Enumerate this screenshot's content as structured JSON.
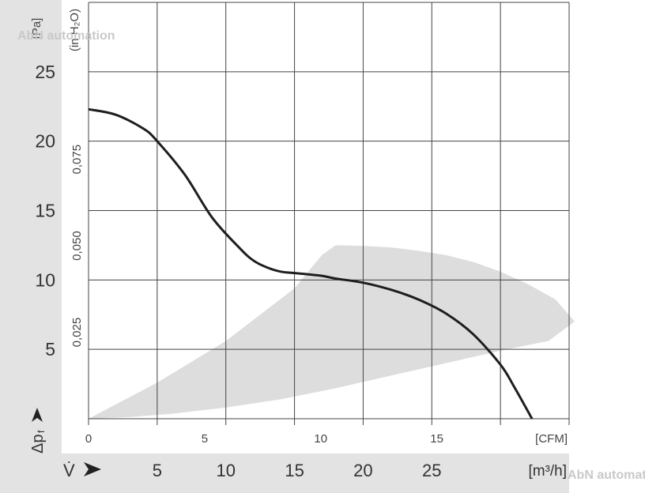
{
  "chart_data": {
    "type": "line",
    "units": {
      "pressure_pa": "[Pa]",
      "pressure_inh2o": "(in H₂O)",
      "flow_cfm": "[CFM]",
      "flow_m3h": "[m³/h]"
    },
    "axis_symbols": {
      "pressure": "Δp",
      "pressure_sub": "f",
      "flow": "V̇"
    },
    "x_cfm": {
      "ticks": [
        "0",
        "5",
        "10",
        "15"
      ],
      "tick_values": [
        0,
        5,
        10,
        15
      ],
      "range": [
        0,
        20.7
      ]
    },
    "x_m3h": {
      "ticks": [
        "5",
        "10",
        "15",
        "20",
        "25"
      ],
      "tick_values": [
        5,
        10,
        15,
        20,
        25
      ],
      "range": [
        0,
        35
      ]
    },
    "y_pa": {
      "ticks": [
        "5",
        "10",
        "15",
        "20",
        "25"
      ],
      "tick_values": [
        5,
        10,
        15,
        20,
        25
      ],
      "range": [
        0,
        30
      ]
    },
    "y_inh2o": {
      "ticks": [
        "0,025",
        "0,050",
        "0,075"
      ],
      "tick_values": [
        0.025,
        0.05,
        0.075
      ],
      "range": [
        0,
        0.1204
      ]
    },
    "grid": true,
    "series": [
      {
        "x_m3h": [
          0,
          2,
          4,
          5,
          7,
          9,
          11,
          12,
          13,
          14,
          15,
          16,
          17,
          18,
          20,
          22,
          24,
          26,
          28,
          30,
          31,
          32.3
        ],
        "y_pa": [
          22.3,
          21.9,
          20.9,
          20.0,
          17.6,
          14.5,
          12.3,
          11.4,
          10.9,
          10.6,
          10.5,
          10.4,
          10.3,
          10.1,
          9.8,
          9.3,
          8.6,
          7.6,
          6.1,
          3.9,
          2.3,
          0
        ]
      }
    ],
    "operating_region": {
      "upper": {
        "x_m3h": [
          0,
          5,
          10,
          15,
          17,
          18
        ],
        "y_pa": [
          0,
          2.6,
          5.6,
          9.4,
          11.8,
          12.5
        ]
      },
      "top": {
        "x_m3h": [
          18,
          20,
          22,
          24,
          26,
          28,
          30,
          32,
          34,
          35.4
        ]
      },
      "top_y_pa": [
        12.5,
        12.45,
        12.35,
        12.1,
        11.8,
        11.3,
        10.6,
        9.7,
        8.6,
        7.0
      ],
      "lower": {
        "x_m3h": [
          33.5,
          30,
          26,
          22,
          18,
          14,
          10,
          6,
          3,
          0
        ],
        "y_pa": [
          5.6,
          4.9,
          4.0,
          3.1,
          2.2,
          1.4,
          0.8,
          0.35,
          0.12,
          0
        ]
      }
    },
    "colors": {
      "curve": "#1e1e1e",
      "region": "#dddddd",
      "grid": "#444444",
      "left_band": "#e3e3e3"
    },
    "watermark": "AbN automation"
  }
}
